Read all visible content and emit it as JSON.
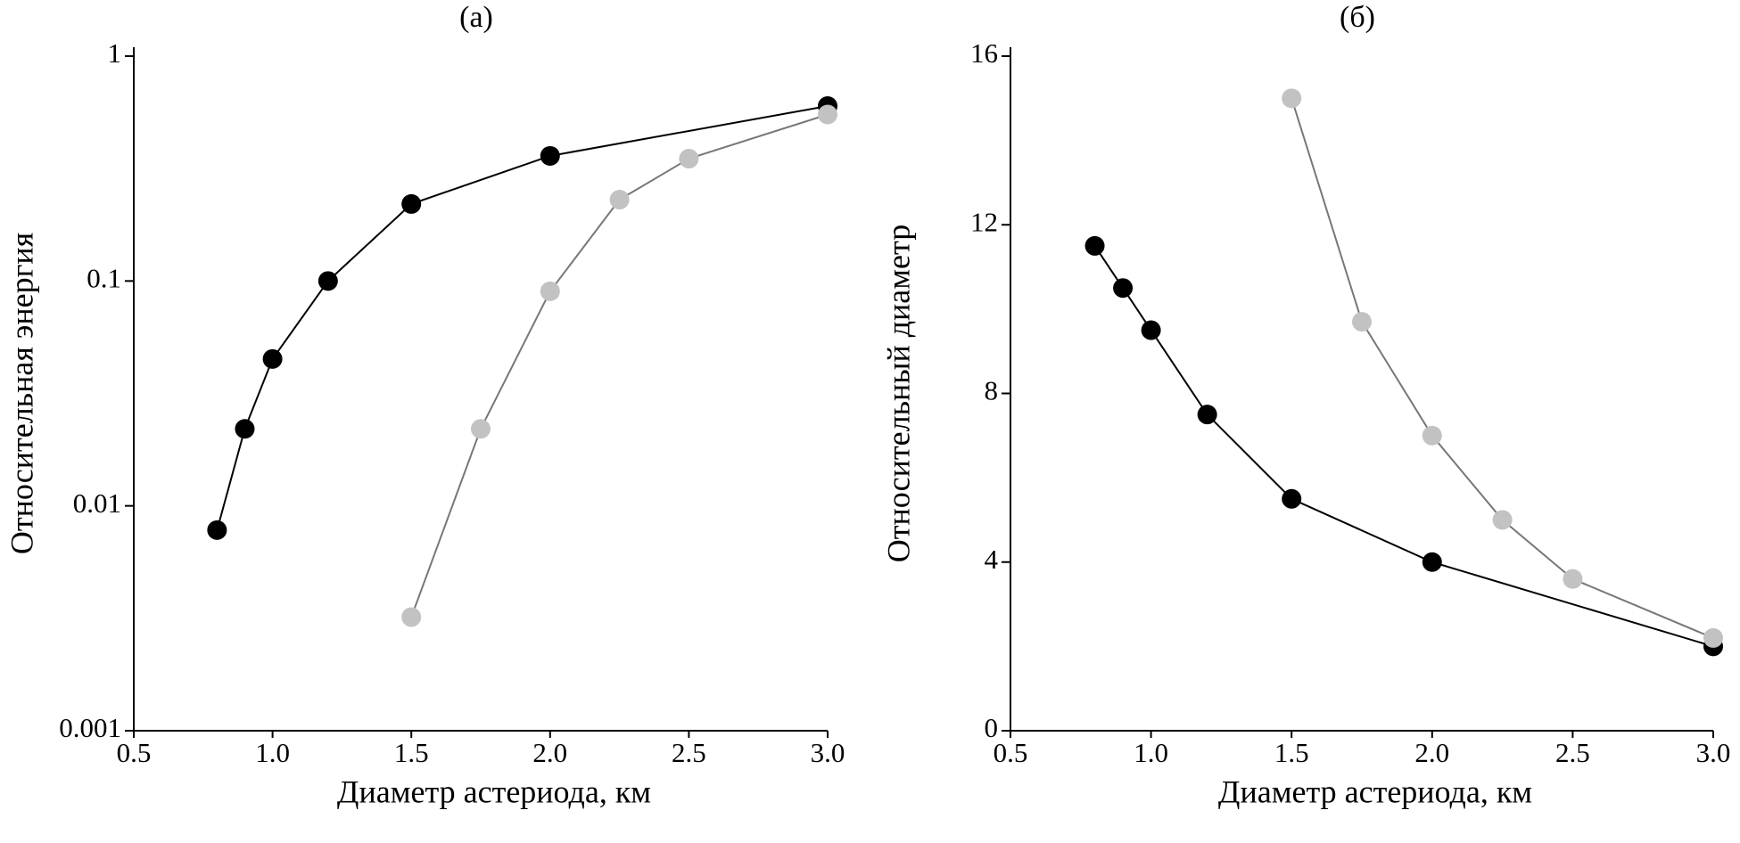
{
  "chart_data": [
    {
      "type": "line",
      "title": "(а)",
      "xlabel": "Диаметр астериода, км",
      "ylabel": "Относительная энергия",
      "log_y": true,
      "xlim": [
        0.5,
        3.0
      ],
      "xticks": [
        0.5,
        {
          "value": 1,
          "label": "1.0"
        },
        1.5,
        {
          "value": 2,
          "label": "2.0"
        },
        2.5,
        {
          "value": 3,
          "label": "3.0"
        }
      ],
      "ylim": [
        0.001,
        1
      ],
      "yticks": [
        0.001,
        0.01,
        0.1,
        1
      ],
      "series": [
        {
          "color": "#000000",
          "line_color": "#000000",
          "x": [
            0.8,
            0.9,
            1.0,
            1.2,
            1.5,
            2.0,
            3.0
          ],
          "values": [
            0.0078,
            0.022,
            0.045,
            0.1,
            0.22,
            0.36,
            0.6
          ]
        },
        {
          "color": "#c2c2c2",
          "line_color": "#777777",
          "x": [
            1.5,
            1.75,
            2.0,
            2.25,
            2.5,
            3.0
          ],
          "values": [
            0.0032,
            0.022,
            0.09,
            0.23,
            0.35,
            0.55
          ]
        }
      ]
    },
    {
      "type": "line",
      "title": "(б)",
      "xlabel": "Диаметр астериода, км",
      "ylabel": "Относительный диаметр",
      "log_y": false,
      "xlim": [
        0.5,
        3.0
      ],
      "xticks": [
        0.5,
        {
          "value": 1,
          "label": "1.0"
        },
        1.5,
        {
          "value": 2,
          "label": "2.0"
        },
        2.5,
        {
          "value": 3,
          "label": "3.0"
        }
      ],
      "ylim": [
        0,
        16
      ],
      "yticks": [
        0,
        4,
        8,
        12,
        16
      ],
      "series": [
        {
          "color": "#000000",
          "line_color": "#000000",
          "x": [
            0.8,
            0.9,
            1.0,
            1.2,
            1.5,
            2.0,
            3.0
          ],
          "values": [
            11.5,
            10.5,
            9.5,
            7.5,
            5.5,
            4.0,
            2.0
          ]
        },
        {
          "color": "#c2c2c2",
          "line_color": "#777777",
          "x": [
            1.5,
            1.75,
            2.0,
            2.25,
            2.5,
            3.0
          ],
          "values": [
            15,
            9.7,
            7,
            5,
            3.6,
            2.2
          ]
        }
      ]
    }
  ]
}
